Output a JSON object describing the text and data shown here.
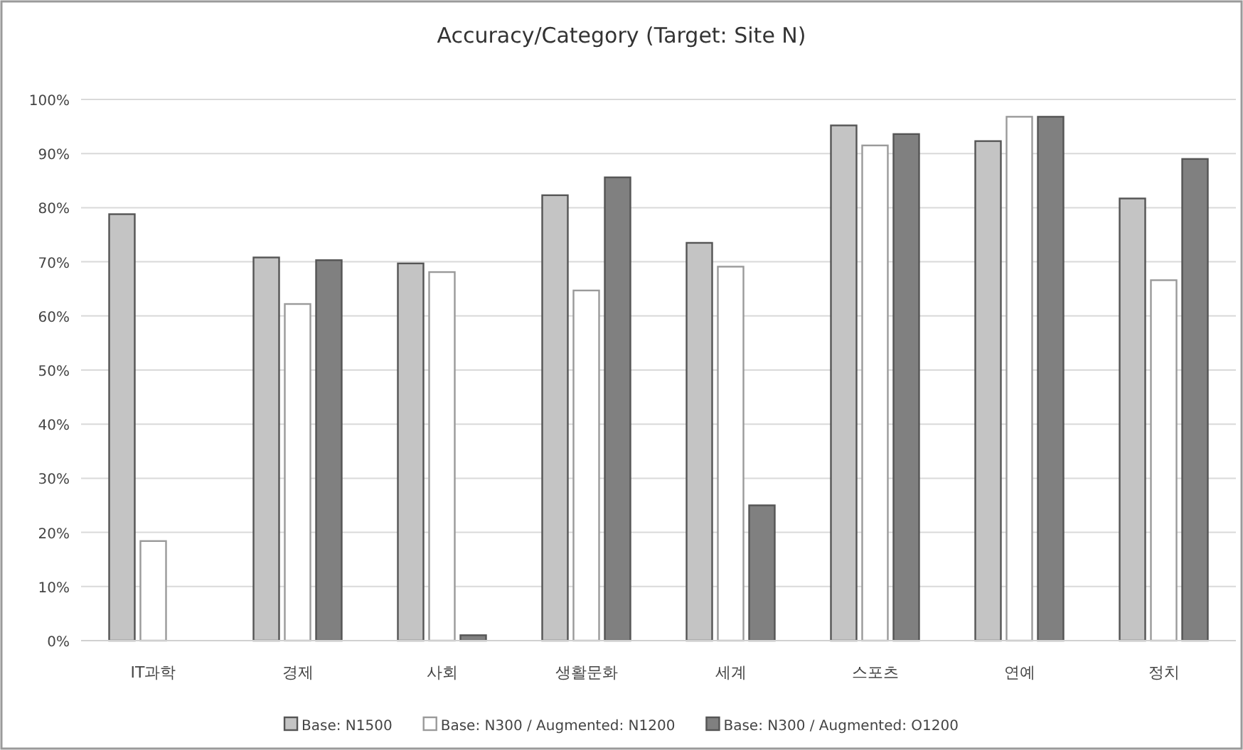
{
  "chart_data": {
    "type": "bar",
    "title": "Accuracy/Category (Target: Site N)",
    "categories": [
      "IT과학",
      "경제",
      "사회",
      "생활문화",
      "세계",
      "스포츠",
      "연예",
      "정치"
    ],
    "series": [
      {
        "name": "Base: N1500",
        "color": "#c4c4c4",
        "values": [
          78.8,
          70.8,
          69.7,
          82.3,
          73.5,
          95.2,
          92.3,
          81.7
        ]
      },
      {
        "name": "Base: N300 / Augmented: N1200",
        "color": "#ffffff",
        "values": [
          18.4,
          62.2,
          68.1,
          64.7,
          69.1,
          91.5,
          96.8,
          66.6
        ]
      },
      {
        "name": "Base: N300 / Augmented: O1200",
        "color": "#808080",
        "values": [
          null,
          70.3,
          1.0,
          85.6,
          25.0,
          93.6,
          96.8,
          89.0
        ]
      }
    ],
    "ylim": [
      0,
      100
    ],
    "yticks": [
      {
        "value": 0,
        "label": "0%"
      },
      {
        "value": 10,
        "label": "10%"
      },
      {
        "value": 20,
        "label": "20%"
      },
      {
        "value": 30,
        "label": "30%"
      },
      {
        "value": 40,
        "label": "40%"
      },
      {
        "value": 50,
        "label": "50%"
      },
      {
        "value": 60,
        "label": "60%"
      },
      {
        "value": 70,
        "label": "70%"
      },
      {
        "value": 80,
        "label": "80%"
      },
      {
        "value": 90,
        "label": "90%"
      },
      {
        "value": 100,
        "label": "100%"
      }
    ],
    "grid": "y",
    "legend": "bottom"
  }
}
